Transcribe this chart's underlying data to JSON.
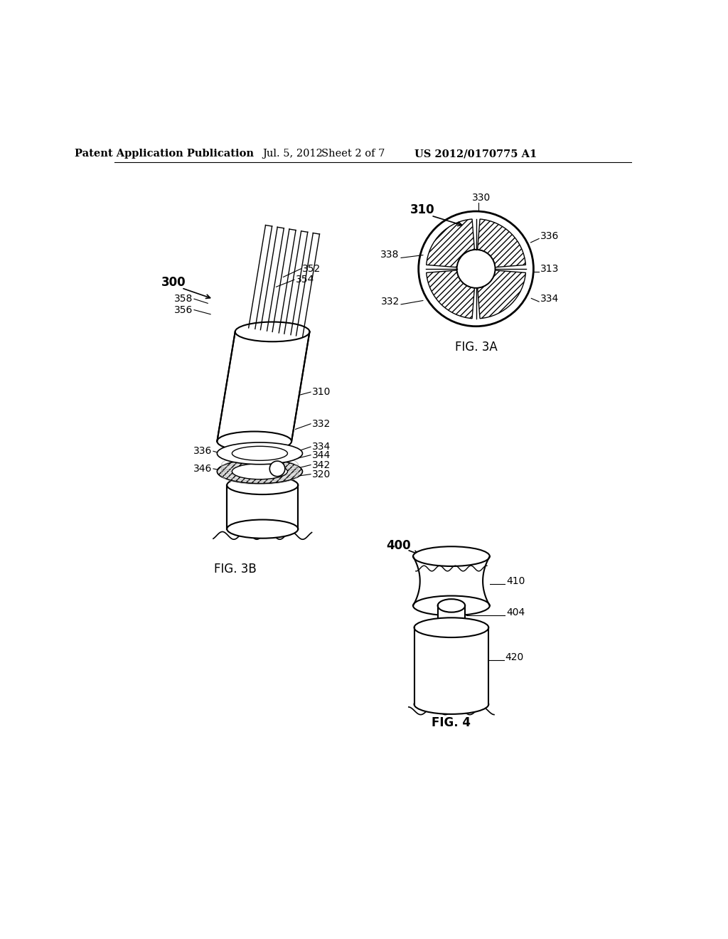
{
  "bg_color": "#ffffff",
  "header_text": "Patent Application Publication",
  "header_date": "Jul. 5, 2012",
  "header_sheet": "Sheet 2 of 7",
  "header_patent": "US 2012/0170775 A1",
  "fig3a_label": "FIG. 3A",
  "fig3b_label": "FIG. 3B",
  "fig4_label": "FIG. 4",
  "line_color": "#000000",
  "bg": "#ffffff"
}
